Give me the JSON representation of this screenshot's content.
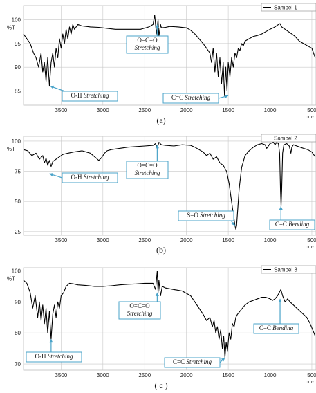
{
  "chart_data": [
    {
      "type": "line",
      "panel_label": "(a)",
      "legend": "Sampel 1",
      "y_unit_label": "%T",
      "x_unit_label": "cm-",
      "xlim": [
        3950,
        450
      ],
      "ylim": [
        82,
        103
      ],
      "x_ticks": [
        3500,
        3000,
        2500,
        2000,
        1500,
        1000,
        500
      ],
      "y_ticks": [
        100,
        95,
        90,
        85
      ],
      "annotations": [
        {
          "lines": [
            "O=C=O",
            "Stretching"
          ],
          "italic_line": 1,
          "point": [
            2350,
            99
          ]
        },
        {
          "lines": [
            "O-H Stretching"
          ],
          "italic_word": "Stretching",
          "point": [
            3630,
            86
          ]
        },
        {
          "lines": [
            "C=C Stretching"
          ],
          "italic_word": "Stretching",
          "point": [
            1500,
            84
          ]
        }
      ],
      "series": [
        {
          "x": [
            3950,
            3910,
            3870,
            3830,
            3800,
            3770,
            3740,
            3720,
            3700,
            3680,
            3660,
            3640,
            3620,
            3600,
            3580,
            3560,
            3540,
            3520,
            3500,
            3480,
            3460,
            3440,
            3420,
            3400,
            3380,
            3360,
            3340,
            3300,
            3250,
            3150,
            3050,
            2950,
            2850,
            2700,
            2550,
            2450,
            2400,
            2380,
            2360,
            2340,
            2330,
            2310,
            2300,
            2250,
            2200,
            2100,
            2000,
            1950,
            1900,
            1850,
            1800,
            1760,
            1720,
            1700,
            1680,
            1660,
            1640,
            1620,
            1600,
            1580,
            1560,
            1545,
            1530,
            1515,
            1500,
            1480,
            1460,
            1440,
            1420,
            1400,
            1380,
            1360,
            1340,
            1320,
            1300,
            1250,
            1200,
            1150,
            1100,
            1050,
            1000,
            950,
            900,
            880,
            860,
            820,
            780,
            740,
            700,
            650,
            600,
            550,
            500,
            460
          ],
          "y": [
            97,
            96,
            95,
            93,
            92,
            90,
            93,
            89,
            91,
            87,
            92,
            86,
            91,
            93,
            90,
            94,
            92,
            96,
            94,
            97,
            95,
            98,
            96,
            98.5,
            97,
            99,
            98,
            99,
            98.7,
            98.5,
            98.4,
            98.2,
            98.0,
            98.0,
            98.0,
            98.5,
            99,
            101,
            97,
            100,
            96.5,
            99,
            98.3,
            98.4,
            98.6,
            98.5,
            98.3,
            97.8,
            97.0,
            96.0,
            95.0,
            94.0,
            93.0,
            91.0,
            94.0,
            89.0,
            93.0,
            88.0,
            92.0,
            86.5,
            91.0,
            84.0,
            90.0,
            85.0,
            91.0,
            88.0,
            92.0,
            90.0,
            93.0,
            92.0,
            94.0,
            93.5,
            95.0,
            94.5,
            95.5,
            96.0,
            96.5,
            96.7,
            97.0,
            97.5,
            98.0,
            98.4,
            99.0,
            99.2,
            98.5,
            98.0,
            97.5,
            97.0,
            96.5,
            95.5,
            95.0,
            94.5,
            94.0,
            92.0
          ]
        }
      ]
    },
    {
      "type": "line",
      "panel_label": "(b)",
      "legend": "Sampel 2",
      "y_unit_label": "%T",
      "x_unit_label": "cm-",
      "xlim": [
        3950,
        450
      ],
      "ylim": [
        22,
        104
      ],
      "x_ticks": [
        3500,
        3000,
        2500,
        2000,
        1500,
        1000,
        500
      ],
      "y_ticks": [
        100,
        75,
        50,
        25
      ],
      "annotations": [
        {
          "lines": [
            "O=C=O",
            "Stretching"
          ],
          "italic_line": 1,
          "point": [
            2350,
            97
          ]
        },
        {
          "lines": [
            "O-H Stretching"
          ],
          "italic_word": "Stretching",
          "point": [
            3640,
            73
          ]
        },
        {
          "lines": [
            "S=O Stretching"
          ],
          "italic_word": "Stretching",
          "point": [
            1420,
            30
          ]
        },
        {
          "lines": [
            "C=C Bending"
          ],
          "italic_word": "Bending",
          "point": [
            870,
            46
          ]
        }
      ],
      "series": [
        {
          "x": [
            3950,
            3900,
            3850,
            3800,
            3760,
            3720,
            3700,
            3680,
            3660,
            3640,
            3620,
            3600,
            3560,
            3520,
            3480,
            3420,
            3350,
            3250,
            3150,
            3080,
            3050,
            3020,
            3000,
            2980,
            2950,
            2900,
            2800,
            2700,
            2600,
            2500,
            2400,
            2370,
            2350,
            2330,
            2300,
            2250,
            2150,
            2050,
            1950,
            1900,
            1850,
            1800,
            1760,
            1720,
            1680,
            1640,
            1600,
            1560,
            1520,
            1490,
            1470,
            1450,
            1430,
            1420,
            1410,
            1400,
            1390,
            1370,
            1340,
            1300,
            1250,
            1200,
            1150,
            1100,
            1060,
            1040,
            1000,
            960,
            940,
            920,
            900,
            885,
            875,
            868,
            860,
            850,
            835,
            800,
            770,
            750,
            740,
            720,
            680,
            640,
            600,
            550,
            500,
            460
          ],
          "y": [
            93,
            92,
            88,
            90,
            85,
            88,
            82,
            86,
            80,
            84,
            79,
            83,
            85,
            87,
            89,
            90,
            91,
            92,
            90,
            86,
            84,
            86,
            88,
            90,
            92,
            93,
            94,
            95,
            95.5,
            96,
            96.5,
            98,
            94,
            99,
            97,
            96.5,
            96,
            97,
            96.5,
            95,
            93,
            91,
            88,
            90,
            85,
            87,
            82,
            80,
            75,
            65,
            55,
            45,
            35,
            30,
            27,
            30,
            40,
            60,
            78,
            88,
            92,
            95,
            97,
            98,
            97,
            94,
            98,
            99,
            97,
            99,
            98,
            90,
            60,
            46,
            60,
            90,
            97,
            98,
            96,
            90,
            95,
            97,
            96,
            95,
            94,
            93,
            91,
            87
          ]
        }
      ]
    },
    {
      "type": "line",
      "panel_label": "( c )",
      "legend": "Sampel 3",
      "y_unit_label": "%T",
      "x_unit_label": "cm-",
      "xlim": [
        3950,
        450
      ],
      "ylim": [
        68,
        101
      ],
      "x_ticks": [
        3500,
        3000,
        2500,
        2000,
        1500,
        1000,
        500
      ],
      "y_ticks": [
        100,
        90,
        80,
        70
      ],
      "annotations": [
        {
          "lines": [
            "O=C=O",
            "Stretching"
          ],
          "italic_line": 1,
          "point": [
            2350,
            93
          ]
        },
        {
          "lines": [
            "O-H Stretching"
          ],
          "italic_word": "Stretching",
          "point": [
            3620,
            78
          ]
        },
        {
          "lines": [
            "C=C Stretching"
          ],
          "italic_word": "Stretching",
          "point": [
            1540,
            72
          ]
        },
        {
          "lines": [
            "C=C Bending"
          ],
          "italic_word": "Bending",
          "point": [
            880,
            91
          ]
        }
      ],
      "series": [
        {
          "x": [
            3950,
            3910,
            3870,
            3840,
            3810,
            3780,
            3760,
            3740,
            3720,
            3700,
            3680,
            3660,
            3640,
            3620,
            3600,
            3580,
            3560,
            3540,
            3520,
            3500,
            3470,
            3440,
            3400,
            3350,
            3300,
            3200,
            3100,
            3000,
            2900,
            2800,
            2700,
            2600,
            2500,
            2400,
            2370,
            2350,
            2340,
            2330,
            2310,
            2290,
            2250,
            2150,
            2050,
            1950,
            1900,
            1850,
            1800,
            1760,
            1720,
            1690,
            1670,
            1650,
            1630,
            1610,
            1590,
            1570,
            1555,
            1540,
            1525,
            1510,
            1490,
            1470,
            1450,
            1430,
            1410,
            1390,
            1360,
            1330,
            1300,
            1250,
            1200,
            1150,
            1100,
            1050,
            1000,
            970,
            940,
            910,
            890,
            870,
            850,
            820,
            790,
            760,
            720,
            680,
            640,
            600,
            560,
            520,
            490,
            460
          ],
          "y": [
            97,
            96,
            93,
            88,
            92,
            85,
            90,
            84,
            89,
            83,
            88,
            80,
            87,
            78,
            86,
            89,
            85,
            90,
            88,
            92,
            93,
            95,
            96,
            95.8,
            95.5,
            95.3,
            95.0,
            95.0,
            95.2,
            95.5,
            95.7,
            95.8,
            96,
            96,
            94,
            100,
            93,
            97,
            92,
            95,
            94.5,
            94,
            93.5,
            92,
            90,
            88,
            86,
            84,
            85,
            82,
            84,
            80,
            82,
            78,
            81,
            75,
            79,
            72,
            77,
            74,
            80,
            78,
            83,
            82,
            85,
            86,
            87,
            88,
            89,
            90,
            90.5,
            91,
            91.5,
            91.5,
            91,
            90.5,
            91,
            92,
            93,
            94,
            92,
            90,
            91,
            90,
            89,
            88,
            87,
            86,
            85,
            83,
            81,
            79
          ]
        }
      ]
    }
  ]
}
